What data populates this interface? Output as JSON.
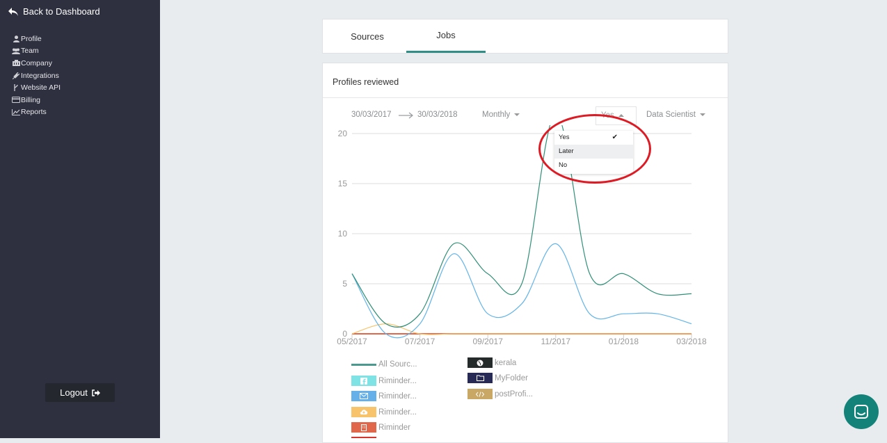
{
  "sidebar": {
    "back_label": "Back to Dashboard",
    "items": [
      {
        "label": "Profile",
        "icon": "user-icon"
      },
      {
        "label": "Team",
        "icon": "users-icon"
      },
      {
        "label": "Company",
        "icon": "building-icon"
      },
      {
        "label": "Integrations",
        "icon": "plug-icon"
      },
      {
        "label": "Website API",
        "icon": "code-fork-icon"
      },
      {
        "label": "Billing",
        "icon": "credit-card-icon"
      },
      {
        "label": "Reports",
        "icon": "line-chart-icon"
      }
    ],
    "logout_label": "Logout"
  },
  "tabs": [
    {
      "label": "Sources",
      "active": false
    },
    {
      "label": "Jobs",
      "active": true
    }
  ],
  "card": {
    "title": "Profiles reviewed"
  },
  "filters": {
    "date_from": "30/03/2017",
    "date_to": "30/03/2018",
    "period": "Monthly",
    "status_selected": "Yes",
    "job": "Data Scientist"
  },
  "dropdown": {
    "options": [
      {
        "label": "Yes",
        "checked": true
      },
      {
        "label": "Later",
        "checked": false
      },
      {
        "label": "No",
        "checked": false
      }
    ]
  },
  "colors": {
    "accent": "#2f8f87",
    "sidebar_bg": "#2e303f",
    "highlight_circle": "#dd1b24"
  },
  "chart_data": {
    "type": "line",
    "x": [
      "05/2017",
      "06/2017",
      "07/2017",
      "08/2017",
      "09/2017",
      "10/2017",
      "11/2017",
      "12/2017",
      "01/2018",
      "02/2018",
      "03/2018"
    ],
    "x_tick_labels": [
      "05/2017",
      "07/2017",
      "09/2017",
      "11/2017",
      "01/2018",
      "03/2018"
    ],
    "ylim": [
      0,
      20
    ],
    "y_ticks": [
      0,
      5,
      10,
      15,
      20
    ],
    "grid": true,
    "series": [
      {
        "name": "All Sourc...",
        "color": "#2f8f76",
        "values": [
          6,
          1,
          2,
          9,
          6,
          5,
          22,
          6,
          6,
          4,
          4
        ]
      },
      {
        "name": "Riminder...",
        "color": "#62b4e8",
        "values": [
          6,
          0,
          1,
          8,
          2,
          3,
          9,
          2,
          2,
          2,
          1
        ]
      },
      {
        "name": "Riminder...",
        "color": "#f7c46c",
        "values": [
          0,
          1,
          0,
          0,
          0,
          0,
          0,
          0,
          0,
          0,
          0
        ]
      },
      {
        "name": "Riminder",
        "color": "#e0674a",
        "values": [
          0,
          0,
          0,
          0,
          0,
          0,
          0,
          0,
          0,
          0,
          0
        ]
      }
    ]
  },
  "legend": {
    "left": [
      {
        "label": "All Sourc...",
        "color": "#4a9a8f",
        "icon": "line-swatch",
        "kind": "line"
      },
      {
        "label": "Riminder...",
        "color": "#7fe3e6",
        "icon": "facebook-icon",
        "kind": "box"
      },
      {
        "label": "Riminder...",
        "color": "#66b0ea",
        "icon": "envelope-icon",
        "kind": "box"
      },
      {
        "label": "Riminder...",
        "color": "#f7c46c",
        "icon": "cloud-upload-icon",
        "kind": "box"
      },
      {
        "label": "Riminder",
        "color": "#e0674a",
        "icon": "building-icon",
        "kind": "box"
      }
    ],
    "right": [
      {
        "label": "kerala",
        "color": "#252a2b",
        "icon": "globe-icon",
        "kind": "box"
      },
      {
        "label": "MyFolder",
        "color": "#262a55",
        "icon": "folder-icon",
        "kind": "box"
      },
      {
        "label": "postProfi...",
        "color": "#c9a865",
        "icon": "code-icon",
        "kind": "box"
      }
    ]
  }
}
